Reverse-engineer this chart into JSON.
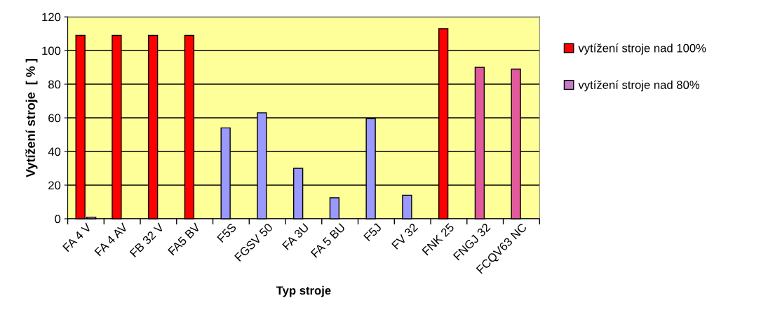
{
  "chart_data": {
    "type": "bar",
    "xlabel": "Typ stroje",
    "ylabel": "Vytížení stroje  [ % ]",
    "categories": [
      "FA 4 V",
      "FA 4 AV",
      "FB 32 V",
      "FA5 BV",
      "F5S",
      "FGSV 50",
      "FA 3U",
      "FA 5 BU",
      "F5J",
      "FV 32",
      "FNK 25",
      "FNGJ 32",
      "FCQV63 NC"
    ],
    "series": [
      {
        "name": "vytížení stroje nad 100%",
        "color": "#ff0000",
        "colors": [
          "#ff0000",
          "#ff0000",
          "#ff0000",
          "#ff0000",
          "#9999ff",
          "#9999ff",
          "#9999ff",
          "#9999ff",
          "#9999ff",
          "#9999ff",
          "#ff0000",
          "#e05a9c",
          "#e05a9c"
        ],
        "values": [
          109,
          109,
          109,
          109,
          54,
          63,
          30,
          12.5,
          59.5,
          14,
          113,
          90,
          89
        ]
      },
      {
        "name": "vytížení stroje nad 80%",
        "color": "#c67bc8",
        "values": [
          1,
          null,
          null,
          null,
          null,
          null,
          null,
          null,
          null,
          null,
          null,
          null,
          null
        ]
      }
    ],
    "ylim": [
      0,
      120
    ],
    "yticks": [
      0,
      20,
      40,
      60,
      80,
      100,
      120
    ],
    "grid": "y",
    "legend": "right"
  }
}
